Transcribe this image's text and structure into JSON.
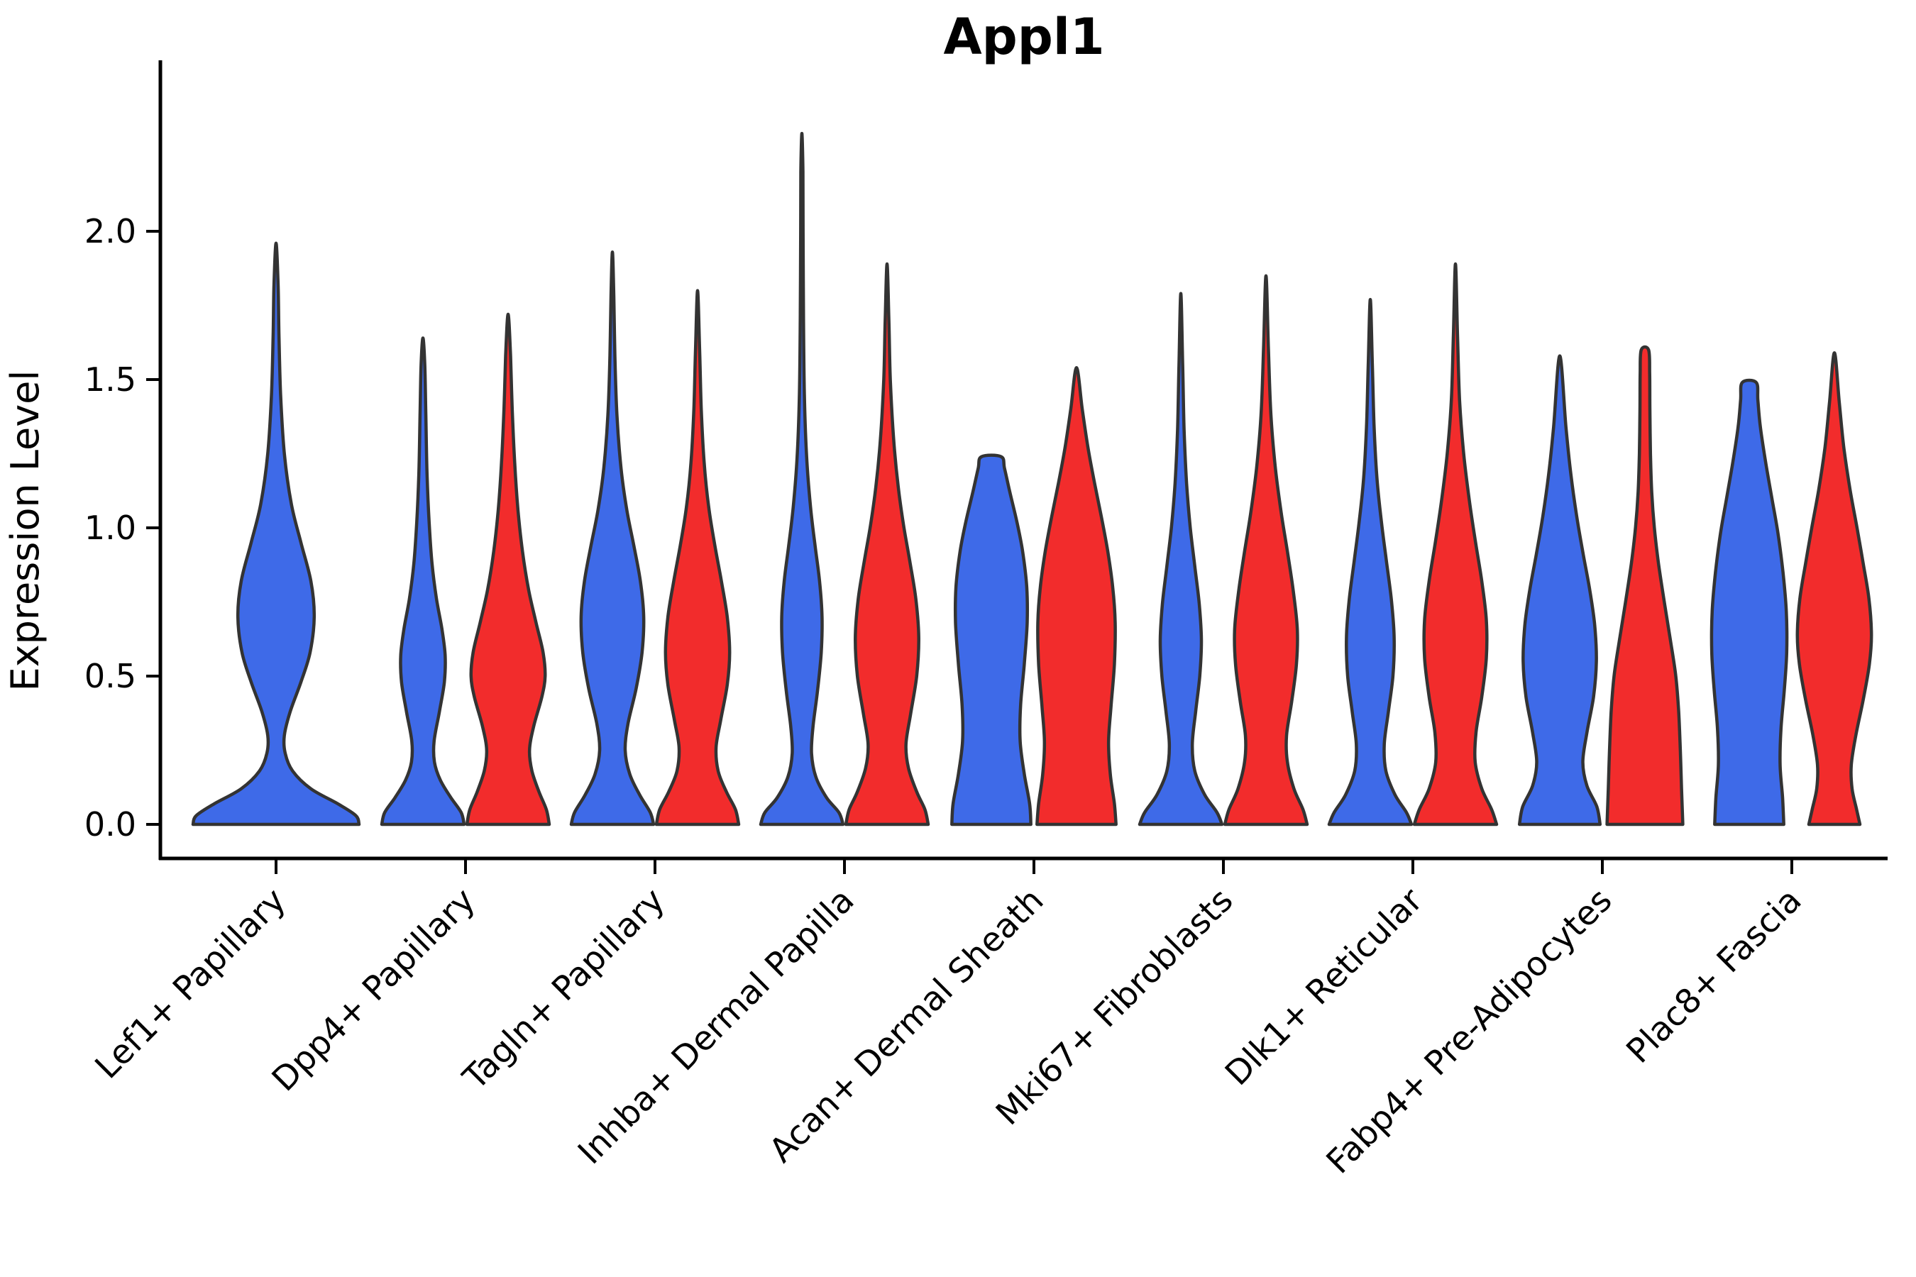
{
  "title": "Appl1",
  "colors": {
    "violin_blue": "#3E6AE8",
    "violin_red": "#F22C2C",
    "outline": "#333333",
    "axis": "#000000",
    "background": "#ffffff"
  },
  "chart_data": {
    "type": "violin",
    "title": "Appl1",
    "xlabel": "",
    "ylabel": "Expression Level",
    "ylim": [
      -0.115,
      2.575
    ],
    "grid": false,
    "legend": "none",
    "x_tick_rotation": 45,
    "y_ticks": [
      0.0,
      0.5,
      1.0,
      1.5,
      2.0
    ],
    "y_tick_labels": [
      "0.0",
      "0.5",
      "1.0",
      "1.5",
      "2.0"
    ],
    "categories": [
      "Lef1+ Papillary",
      "Dpp4+ Papillary",
      "Tagln+ Papillary",
      "Inhba+ Dermal Papilla",
      "Acan+ Dermal Sheath",
      "Mki67+ Fibroblasts",
      "Dlk1+ Reticular",
      "Fabp4+ Pre-Adipocytes",
      "Plac8+ Fascia"
    ],
    "series": [
      {
        "name": "blue",
        "color": "#3E6AE8",
        "max_expression": [
          1.96,
          1.64,
          1.93,
          2.33,
          1.24,
          1.79,
          1.77,
          1.58,
          1.49
        ]
      },
      {
        "name": "red",
        "color": "#F22C2C",
        "max_expression": [
          null,
          1.72,
          1.8,
          1.89,
          1.54,
          1.85,
          1.89,
          1.6,
          1.59
        ]
      }
    ],
    "violins": [
      {
        "category_index": 0,
        "hue": "blue",
        "position": "center",
        "top": 1.96,
        "profile": [
          [
            0,
            1.0
          ],
          [
            0.03,
            0.96
          ],
          [
            0.07,
            0.74
          ],
          [
            0.12,
            0.42
          ],
          [
            0.18,
            0.2
          ],
          [
            0.24,
            0.11
          ],
          [
            0.3,
            0.1
          ],
          [
            0.38,
            0.17
          ],
          [
            0.48,
            0.3
          ],
          [
            0.58,
            0.41
          ],
          [
            0.7,
            0.46
          ],
          [
            0.82,
            0.42
          ],
          [
            0.95,
            0.3
          ],
          [
            1.08,
            0.185
          ],
          [
            1.25,
            0.1
          ],
          [
            1.45,
            0.055
          ],
          [
            1.65,
            0.035
          ],
          [
            1.82,
            0.025
          ],
          [
            1.96,
            0.0
          ]
        ]
      },
      {
        "category_index": 1,
        "hue": "blue",
        "position": "left",
        "top": 1.64,
        "profile": [
          [
            0,
            1.0
          ],
          [
            0.04,
            0.93
          ],
          [
            0.09,
            0.68
          ],
          [
            0.15,
            0.42
          ],
          [
            0.21,
            0.28
          ],
          [
            0.28,
            0.27
          ],
          [
            0.38,
            0.4
          ],
          [
            0.48,
            0.52
          ],
          [
            0.57,
            0.54
          ],
          [
            0.66,
            0.46
          ],
          [
            0.76,
            0.33
          ],
          [
            0.88,
            0.22
          ],
          [
            1.02,
            0.15
          ],
          [
            1.18,
            0.1
          ],
          [
            1.38,
            0.07
          ],
          [
            1.55,
            0.045
          ],
          [
            1.64,
            0.0
          ]
        ]
      },
      {
        "category_index": 1,
        "hue": "red",
        "position": "right",
        "top": 1.72,
        "profile": [
          [
            0,
            1.0
          ],
          [
            0.05,
            0.93
          ],
          [
            0.11,
            0.75
          ],
          [
            0.18,
            0.58
          ],
          [
            0.25,
            0.52
          ],
          [
            0.33,
            0.62
          ],
          [
            0.43,
            0.82
          ],
          [
            0.5,
            0.9
          ],
          [
            0.58,
            0.85
          ],
          [
            0.68,
            0.68
          ],
          [
            0.79,
            0.5
          ],
          [
            0.92,
            0.35
          ],
          [
            1.06,
            0.24
          ],
          [
            1.22,
            0.16
          ],
          [
            1.4,
            0.1
          ],
          [
            1.58,
            0.06
          ],
          [
            1.72,
            0.0
          ]
        ]
      },
      {
        "category_index": 2,
        "hue": "blue",
        "position": "left",
        "top": 1.93,
        "profile": [
          [
            0,
            1.0
          ],
          [
            0.04,
            0.92
          ],
          [
            0.1,
            0.66
          ],
          [
            0.17,
            0.42
          ],
          [
            0.25,
            0.31
          ],
          [
            0.34,
            0.38
          ],
          [
            0.46,
            0.58
          ],
          [
            0.58,
            0.72
          ],
          [
            0.7,
            0.76
          ],
          [
            0.82,
            0.68
          ],
          [
            0.94,
            0.52
          ],
          [
            1.06,
            0.35
          ],
          [
            1.2,
            0.21
          ],
          [
            1.38,
            0.11
          ],
          [
            1.58,
            0.06
          ],
          [
            1.78,
            0.035
          ],
          [
            1.93,
            0.0
          ]
        ]
      },
      {
        "category_index": 2,
        "hue": "red",
        "position": "right",
        "top": 1.8,
        "profile": [
          [
            0,
            1.0
          ],
          [
            0.05,
            0.92
          ],
          [
            0.11,
            0.7
          ],
          [
            0.18,
            0.5
          ],
          [
            0.26,
            0.45
          ],
          [
            0.35,
            0.56
          ],
          [
            0.47,
            0.72
          ],
          [
            0.58,
            0.78
          ],
          [
            0.7,
            0.72
          ],
          [
            0.82,
            0.58
          ],
          [
            0.94,
            0.42
          ],
          [
            1.07,
            0.27
          ],
          [
            1.22,
            0.16
          ],
          [
            1.4,
            0.09
          ],
          [
            1.6,
            0.05
          ],
          [
            1.8,
            0.0
          ]
        ]
      },
      {
        "category_index": 3,
        "hue": "blue",
        "position": "left",
        "top": 2.33,
        "profile": [
          [
            0,
            1.0
          ],
          [
            0.04,
            0.9
          ],
          [
            0.09,
            0.6
          ],
          [
            0.16,
            0.34
          ],
          [
            0.24,
            0.235
          ],
          [
            0.33,
            0.27
          ],
          [
            0.45,
            0.38
          ],
          [
            0.58,
            0.47
          ],
          [
            0.7,
            0.49
          ],
          [
            0.82,
            0.43
          ],
          [
            0.94,
            0.32
          ],
          [
            1.07,
            0.21
          ],
          [
            1.24,
            0.115
          ],
          [
            1.45,
            0.06
          ],
          [
            1.7,
            0.04
          ],
          [
            2.0,
            0.03
          ],
          [
            2.2,
            0.025
          ],
          [
            2.33,
            0.0
          ]
        ]
      },
      {
        "category_index": 3,
        "hue": "red",
        "position": "right",
        "top": 1.89,
        "profile": [
          [
            0,
            1.0
          ],
          [
            0.05,
            0.92
          ],
          [
            0.11,
            0.72
          ],
          [
            0.19,
            0.52
          ],
          [
            0.27,
            0.46
          ],
          [
            0.37,
            0.57
          ],
          [
            0.5,
            0.72
          ],
          [
            0.63,
            0.77
          ],
          [
            0.76,
            0.7
          ],
          [
            0.89,
            0.55
          ],
          [
            1.01,
            0.4
          ],
          [
            1.14,
            0.27
          ],
          [
            1.3,
            0.16
          ],
          [
            1.5,
            0.08
          ],
          [
            1.7,
            0.045
          ],
          [
            1.89,
            0.0
          ]
        ]
      },
      {
        "category_index": 4,
        "hue": "blue",
        "position": "left",
        "top": 1.24,
        "profile": [
          [
            0,
            0.96
          ],
          [
            0.07,
            0.93
          ],
          [
            0.17,
            0.8
          ],
          [
            0.28,
            0.7
          ],
          [
            0.4,
            0.71
          ],
          [
            0.54,
            0.8
          ],
          [
            0.68,
            0.87
          ],
          [
            0.8,
            0.86
          ],
          [
            0.92,
            0.76
          ],
          [
            1.02,
            0.62
          ],
          [
            1.12,
            0.45
          ],
          [
            1.2,
            0.32
          ],
          [
            1.24,
            0.24
          ]
        ]
      },
      {
        "category_index": 4,
        "hue": "red",
        "position": "right",
        "top": 1.54,
        "profile": [
          [
            0,
            0.96
          ],
          [
            0.07,
            0.92
          ],
          [
            0.17,
            0.82
          ],
          [
            0.28,
            0.78
          ],
          [
            0.4,
            0.84
          ],
          [
            0.54,
            0.92
          ],
          [
            0.68,
            0.94
          ],
          [
            0.8,
            0.88
          ],
          [
            0.92,
            0.76
          ],
          [
            1.04,
            0.6
          ],
          [
            1.15,
            0.44
          ],
          [
            1.27,
            0.28
          ],
          [
            1.4,
            0.14
          ],
          [
            1.54,
            0.0
          ]
        ]
      },
      {
        "category_index": 5,
        "hue": "blue",
        "position": "left",
        "top": 1.79,
        "profile": [
          [
            0,
            1.0
          ],
          [
            0.04,
            0.88
          ],
          [
            0.1,
            0.58
          ],
          [
            0.18,
            0.34
          ],
          [
            0.27,
            0.28
          ],
          [
            0.38,
            0.36
          ],
          [
            0.5,
            0.46
          ],
          [
            0.62,
            0.5
          ],
          [
            0.74,
            0.45
          ],
          [
            0.87,
            0.34
          ],
          [
            1.0,
            0.23
          ],
          [
            1.15,
            0.14
          ],
          [
            1.33,
            0.08
          ],
          [
            1.55,
            0.045
          ],
          [
            1.79,
            0.0
          ]
        ]
      },
      {
        "category_index": 5,
        "hue": "red",
        "position": "right",
        "top": 1.85,
        "profile": [
          [
            0,
            1.0
          ],
          [
            0.05,
            0.9
          ],
          [
            0.12,
            0.68
          ],
          [
            0.21,
            0.52
          ],
          [
            0.3,
            0.5
          ],
          [
            0.41,
            0.62
          ],
          [
            0.54,
            0.74
          ],
          [
            0.66,
            0.76
          ],
          [
            0.79,
            0.66
          ],
          [
            0.92,
            0.52
          ],
          [
            1.05,
            0.37
          ],
          [
            1.2,
            0.23
          ],
          [
            1.38,
            0.12
          ],
          [
            1.6,
            0.06
          ],
          [
            1.85,
            0.0
          ]
        ]
      },
      {
        "category_index": 6,
        "hue": "blue",
        "position": "left",
        "top": 1.77,
        "profile": [
          [
            0,
            1.0
          ],
          [
            0.04,
            0.88
          ],
          [
            0.1,
            0.6
          ],
          [
            0.18,
            0.38
          ],
          [
            0.27,
            0.34
          ],
          [
            0.38,
            0.44
          ],
          [
            0.5,
            0.55
          ],
          [
            0.63,
            0.58
          ],
          [
            0.76,
            0.51
          ],
          [
            0.89,
            0.39
          ],
          [
            1.02,
            0.27
          ],
          [
            1.17,
            0.16
          ],
          [
            1.35,
            0.09
          ],
          [
            1.55,
            0.05
          ],
          [
            1.77,
            0.0
          ]
        ]
      },
      {
        "category_index": 6,
        "hue": "red",
        "position": "right",
        "top": 1.89,
        "profile": [
          [
            0,
            1.0
          ],
          [
            0.05,
            0.88
          ],
          [
            0.12,
            0.64
          ],
          [
            0.21,
            0.48
          ],
          [
            0.31,
            0.5
          ],
          [
            0.43,
            0.64
          ],
          [
            0.56,
            0.75
          ],
          [
            0.69,
            0.75
          ],
          [
            0.82,
            0.64
          ],
          [
            0.95,
            0.49
          ],
          [
            1.09,
            0.34
          ],
          [
            1.25,
            0.2
          ],
          [
            1.43,
            0.1
          ],
          [
            1.65,
            0.05
          ],
          [
            1.89,
            0.0
          ]
        ]
      },
      {
        "category_index": 7,
        "hue": "blue",
        "position": "left",
        "top": 1.58,
        "profile": [
          [
            0,
            0.98
          ],
          [
            0.06,
            0.9
          ],
          [
            0.13,
            0.66
          ],
          [
            0.21,
            0.56
          ],
          [
            0.31,
            0.66
          ],
          [
            0.43,
            0.82
          ],
          [
            0.55,
            0.89
          ],
          [
            0.67,
            0.85
          ],
          [
            0.79,
            0.73
          ],
          [
            0.91,
            0.57
          ],
          [
            1.04,
            0.41
          ],
          [
            1.18,
            0.27
          ],
          [
            1.34,
            0.15
          ],
          [
            1.58,
            0.0
          ]
        ]
      },
      {
        "category_index": 7,
        "hue": "red",
        "position": "right",
        "top": 1.6,
        "profile": [
          [
            0,
            0.92
          ],
          [
            0.12,
            0.89
          ],
          [
            0.25,
            0.86
          ],
          [
            0.38,
            0.82
          ],
          [
            0.5,
            0.75
          ],
          [
            0.62,
            0.62
          ],
          [
            0.75,
            0.47
          ],
          [
            0.88,
            0.33
          ],
          [
            1.0,
            0.23
          ],
          [
            1.12,
            0.165
          ],
          [
            1.25,
            0.135
          ],
          [
            1.4,
            0.12
          ],
          [
            1.52,
            0.115
          ],
          [
            1.6,
            0.09
          ]
        ]
      },
      {
        "category_index": 8,
        "hue": "blue",
        "position": "left",
        "top": 1.49,
        "profile": [
          [
            0,
            0.84
          ],
          [
            0.09,
            0.81
          ],
          [
            0.2,
            0.75
          ],
          [
            0.32,
            0.77
          ],
          [
            0.45,
            0.85
          ],
          [
            0.58,
            0.91
          ],
          [
            0.72,
            0.9
          ],
          [
            0.85,
            0.82
          ],
          [
            0.98,
            0.7
          ],
          [
            1.1,
            0.55
          ],
          [
            1.22,
            0.4
          ],
          [
            1.34,
            0.27
          ],
          [
            1.43,
            0.21
          ],
          [
            1.49,
            0.17
          ]
        ]
      },
      {
        "category_index": 8,
        "hue": "red",
        "position": "right",
        "top": 1.59,
        "profile": [
          [
            0,
            0.62
          ],
          [
            0.05,
            0.54
          ],
          [
            0.12,
            0.43
          ],
          [
            0.2,
            0.41
          ],
          [
            0.3,
            0.52
          ],
          [
            0.42,
            0.7
          ],
          [
            0.54,
            0.85
          ],
          [
            0.64,
            0.9
          ],
          [
            0.76,
            0.84
          ],
          [
            0.88,
            0.7
          ],
          [
            1.0,
            0.55
          ],
          [
            1.13,
            0.38
          ],
          [
            1.27,
            0.23
          ],
          [
            1.42,
            0.12
          ],
          [
            1.59,
            0.0
          ]
        ]
      }
    ]
  }
}
